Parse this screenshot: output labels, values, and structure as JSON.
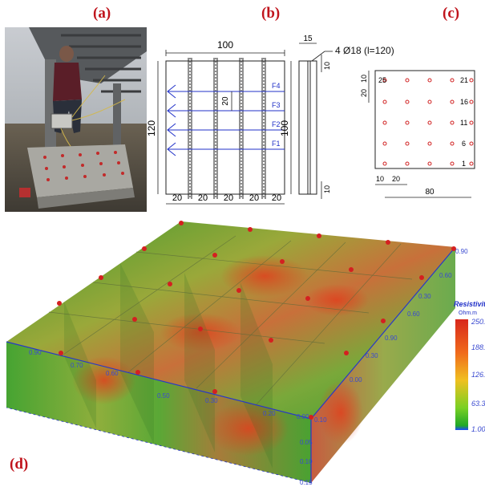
{
  "panel_labels": {
    "a": "(a)",
    "b": "(b)",
    "c": "(c)",
    "d": "(d)"
  },
  "panel_b": {
    "top_width": "100",
    "left_height": "120",
    "section_height": "100",
    "section_width": "15",
    "rebar_note": "4 Ø18 (l=120)",
    "cover_top": "10",
    "cover_bottom": "10",
    "spacing": "20",
    "bottom_spacings": [
      "20",
      "20",
      "20",
      "20",
      "20"
    ],
    "layers": [
      "F4",
      "F3",
      "F2",
      "F1"
    ]
  },
  "panel_c": {
    "edge_top": "10",
    "spacing_left": "20",
    "edge_left": "10",
    "spacing_bottom": "20",
    "total_width": "80",
    "electrode_labels": [
      "25",
      "21",
      "16",
      "11",
      "6",
      "1"
    ]
  },
  "panel_d": {
    "legend_title": "Resistivit",
    "legend_unit": "Ohm.m",
    "legend_ticks": [
      "250.",
      "188.",
      "126.",
      "63.3",
      "1.00"
    ],
    "axis_right": [
      "0.90",
      "0.60",
      "0.30",
      "0.60",
      "0.90",
      "0.30",
      "0.00"
    ],
    "axis_front": [
      "0.90",
      "0.70",
      "0.60",
      "0.50",
      "0.30",
      "0.20",
      "0.00",
      "0.10"
    ],
    "axis_depth": [
      "0.05",
      "0.10",
      "0.15"
    ],
    "colors": {
      "low": "#2c9a2a",
      "mid": "#f0c020",
      "high": "#d8281c",
      "legend_bottom": "#1e46ff"
    }
  }
}
